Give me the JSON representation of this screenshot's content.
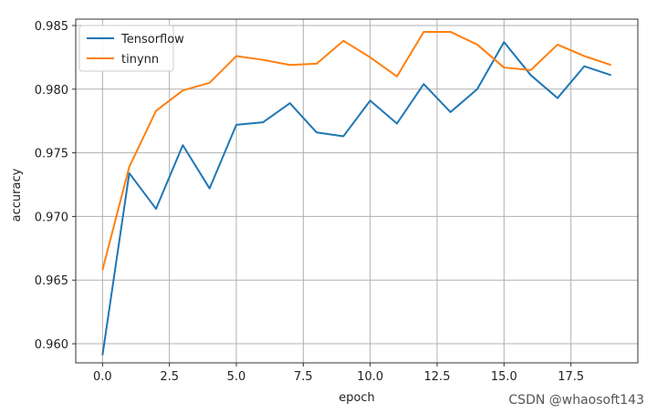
{
  "chart_data": {
    "type": "line",
    "title": "",
    "xlabel": "epoch",
    "ylabel": "accuracy",
    "xlim": [
      -1.0,
      20.0
    ],
    "ylim": [
      0.9585,
      0.9855
    ],
    "xticks": [
      0.0,
      2.5,
      5.0,
      7.5,
      10.0,
      12.5,
      15.0,
      17.5
    ],
    "xtick_labels": [
      "0.0",
      "2.5",
      "5.0",
      "7.5",
      "10.0",
      "12.5",
      "15.0",
      "17.5"
    ],
    "yticks": [
      0.96,
      0.965,
      0.97,
      0.975,
      0.98,
      0.985
    ],
    "ytick_labels": [
      "0.960",
      "0.965",
      "0.970",
      "0.975",
      "0.980",
      "0.985"
    ],
    "grid": true,
    "legend_position": "top-left",
    "x": [
      0,
      1,
      2,
      3,
      4,
      5,
      6,
      7,
      8,
      9,
      10,
      11,
      12,
      13,
      14,
      15,
      16,
      17,
      18,
      19
    ],
    "series": [
      {
        "name": "Tensorflow",
        "color": "#1f77b4",
        "values": [
          0.9591,
          0.9734,
          0.9706,
          0.9756,
          0.9722,
          0.9772,
          0.9774,
          0.9789,
          0.9766,
          0.9763,
          0.9791,
          0.9773,
          0.9804,
          0.9782,
          0.98,
          0.9837,
          0.9811,
          0.9793,
          0.9818,
          0.9811
        ]
      },
      {
        "name": "tinynn",
        "color": "#ff7f0e",
        "values": [
          0.9658,
          0.9739,
          0.9783,
          0.9799,
          0.9805,
          0.9826,
          0.9823,
          0.9819,
          0.982,
          0.9838,
          0.9825,
          0.981,
          0.9845,
          0.9845,
          0.9835,
          0.9817,
          0.9815,
          0.9835,
          0.9826,
          0.9819
        ]
      }
    ]
  },
  "watermark": "CSDN @whaosoft143"
}
